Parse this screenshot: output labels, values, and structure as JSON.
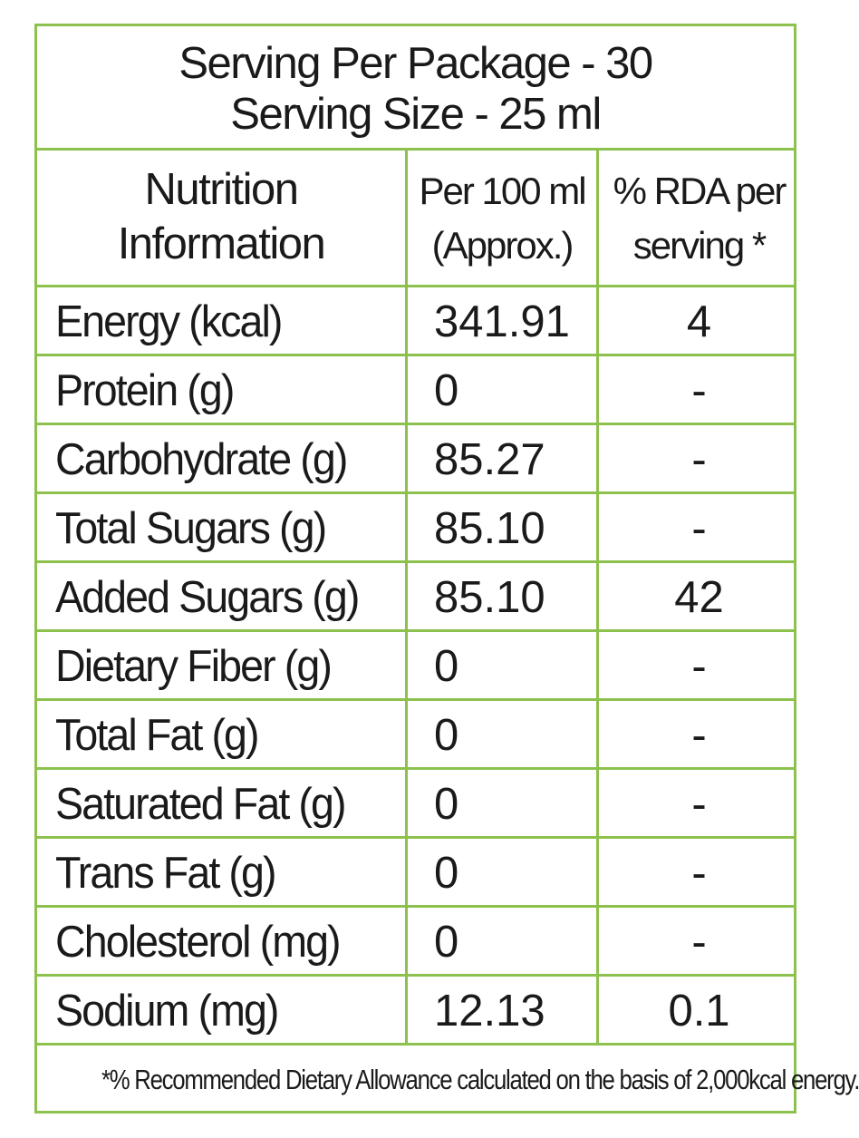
{
  "header": {
    "servings_per_package": "Serving Per Package - 30",
    "serving_size": "Serving Size - 25 ml"
  },
  "columns": {
    "nutrient_line1": "Nutrition",
    "nutrient_line2": "Information",
    "per100_line1": "Per 100 ml",
    "per100_line2": "(Approx.)",
    "rda_line1": "% RDA per",
    "rda_line2": "serving *"
  },
  "rows": [
    {
      "nutrient": "Energy (kcal)",
      "per100": "341.91",
      "rda": "4"
    },
    {
      "nutrient": "Protein (g)",
      "per100": "0",
      "rda": "-"
    },
    {
      "nutrient": "Carbohydrate (g)",
      "per100": "85.27",
      "rda": "-"
    },
    {
      "nutrient": "Total Sugars (g)",
      "per100": "85.10",
      "rda": "-"
    },
    {
      "nutrient": "Added Sugars (g)",
      "per100": "85.10",
      "rda": "42"
    },
    {
      "nutrient": "Dietary Fiber (g)",
      "per100": "0",
      "rda": "-"
    },
    {
      "nutrient": "Total Fat (g)",
      "per100": "0",
      "rda": "-"
    },
    {
      "nutrient": "Saturated Fat (g)",
      "per100": "0",
      "rda": "-"
    },
    {
      "nutrient": "Trans Fat (g)",
      "per100": "0",
      "rda": "-"
    },
    {
      "nutrient": "Cholesterol (mg)",
      "per100": "0",
      "rda": "-"
    },
    {
      "nutrient": "Sodium (mg)",
      "per100": "12.13",
      "rda": "0.1"
    }
  ],
  "footnote": "*% Recommended Dietary Allowance calculated on the basis of 2,000kcal energy.",
  "colors": {
    "border": "#8dc14e",
    "text": "#1a1a1a"
  }
}
